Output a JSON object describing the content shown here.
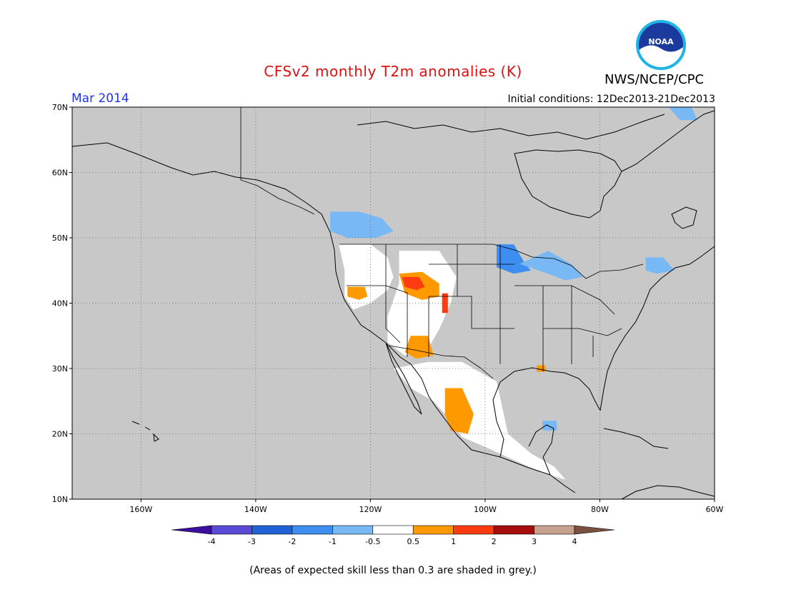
{
  "title": "CFSv2 monthly T2m anomalies (K)",
  "agency": "NWS/NCEP/CPC",
  "logo_text": "NOAA",
  "valid_month": "Mar 2014",
  "initial_conditions": "Initial conditions: 12Dec2013-21Dec2013",
  "footnote": "(Areas of expected skill less than 0.3 are shaded in grey.)",
  "map": {
    "lon_range": [
      -172,
      -60
    ],
    "lat_range": [
      10,
      70
    ],
    "lon_ticks": [
      {
        "value": -160,
        "label": "160W"
      },
      {
        "value": -140,
        "label": "140W"
      },
      {
        "value": -120,
        "label": "120W"
      },
      {
        "value": -100,
        "label": "100W"
      },
      {
        "value": -80,
        "label": "80W"
      },
      {
        "value": -60,
        "label": "60W"
      }
    ],
    "lat_ticks": [
      {
        "value": 10,
        "label": "10N"
      },
      {
        "value": 20,
        "label": "20N"
      },
      {
        "value": 30,
        "label": "30N"
      },
      {
        "value": 40,
        "label": "40N"
      },
      {
        "value": 50,
        "label": "50N"
      },
      {
        "value": 60,
        "label": "60N"
      },
      {
        "value": 70,
        "label": "70N"
      }
    ],
    "background_color": "#c8c8c8",
    "regions": [
      {
        "name": "pacific-nw-white",
        "category": "neutral",
        "points": [
          [
            -125.5,
            49
          ],
          [
            -120,
            49
          ],
          [
            -117,
            47
          ],
          [
            -116,
            44
          ],
          [
            -117,
            42
          ],
          [
            -120,
            40
          ],
          [
            -123,
            39
          ],
          [
            -124.5,
            41
          ],
          [
            -124.5,
            45
          ]
        ]
      },
      {
        "name": "canada-bc-cool",
        "category": "-0.5",
        "points": [
          [
            -127,
            54
          ],
          [
            -122,
            54
          ],
          [
            -118,
            53
          ],
          [
            -116,
            51
          ],
          [
            -119,
            50
          ],
          [
            -124,
            50
          ],
          [
            -127,
            51
          ]
        ]
      },
      {
        "name": "rockies-white",
        "category": "neutral",
        "points": [
          [
            -115,
            48
          ],
          [
            -108,
            48
          ],
          [
            -105,
            44
          ],
          [
            -106,
            40
          ],
          [
            -108,
            36
          ],
          [
            -110,
            33
          ],
          [
            -114,
            32
          ],
          [
            -117,
            34
          ],
          [
            -117,
            38
          ],
          [
            -115,
            43
          ]
        ]
      },
      {
        "name": "idaho-wyoming-warm",
        "category": "0.5",
        "points": [
          [
            -115,
            44.5
          ],
          [
            -111,
            44.8
          ],
          [
            -108,
            43
          ],
          [
            -108,
            41
          ],
          [
            -111,
            40.5
          ],
          [
            -114,
            41.5
          ]
        ]
      },
      {
        "name": "idaho-hot",
        "category": "1",
        "points": [
          [
            -114.5,
            44
          ],
          [
            -111.5,
            44
          ],
          [
            -110.5,
            42.5
          ],
          [
            -112,
            42
          ],
          [
            -114,
            42.5
          ]
        ]
      },
      {
        "name": "colorado-hot",
        "category": "1",
        "points": [
          [
            -107.5,
            41.5
          ],
          [
            -106.5,
            41.5
          ],
          [
            -106.5,
            38.5
          ],
          [
            -107.5,
            38.5
          ]
        ]
      },
      {
        "name": "california-warm",
        "category": "0.5",
        "points": [
          [
            -124,
            42.5
          ],
          [
            -121,
            42.5
          ],
          [
            -120.5,
            41
          ],
          [
            -122,
            40.5
          ],
          [
            -124,
            41
          ]
        ]
      },
      {
        "name": "arizona-warm",
        "category": "0.5",
        "points": [
          [
            -113,
            35
          ],
          [
            -110,
            35
          ],
          [
            -109,
            32
          ],
          [
            -112,
            31.5
          ],
          [
            -114,
            32.5
          ]
        ]
      },
      {
        "name": "mexico-white",
        "category": "neutral",
        "points": [
          [
            -116,
            30
          ],
          [
            -110,
            31
          ],
          [
            -104,
            31
          ],
          [
            -98,
            28
          ],
          [
            -97,
            24
          ],
          [
            -96,
            20
          ],
          [
            -92,
            17
          ],
          [
            -88,
            15
          ],
          [
            -86,
            13
          ],
          [
            -90,
            14
          ],
          [
            -95,
            16
          ],
          [
            -100,
            18
          ],
          [
            -104,
            19.5
          ],
          [
            -106,
            22
          ],
          [
            -109,
            25
          ],
          [
            -113,
            27
          ]
        ]
      },
      {
        "name": "mexico-warm",
        "category": "0.5",
        "points": [
          [
            -107,
            27
          ],
          [
            -104,
            27
          ],
          [
            -102,
            23
          ],
          [
            -103,
            20
          ],
          [
            -106,
            20.5
          ],
          [
            -107,
            23
          ]
        ]
      },
      {
        "name": "gulf-coast-warm",
        "category": "0.5",
        "points": [
          [
            -91,
            30.5
          ],
          [
            -89.5,
            30.5
          ],
          [
            -89.5,
            29.5
          ],
          [
            -91,
            29.5
          ]
        ]
      },
      {
        "name": "upper-midwest-cool",
        "category": "-1",
        "points": [
          [
            -98,
            49
          ],
          [
            -95,
            49
          ],
          [
            -93,
            46
          ],
          [
            -92,
            45
          ],
          [
            -95,
            44.5
          ],
          [
            -98,
            45.5
          ]
        ]
      },
      {
        "name": "great-lakes-cool",
        "category": "-0.5",
        "points": [
          [
            -94,
            46
          ],
          [
            -89,
            48
          ],
          [
            -85,
            46
          ],
          [
            -83,
            44
          ],
          [
            -86,
            43.5
          ],
          [
            -89,
            44.5
          ]
        ]
      },
      {
        "name": "new-england-cool",
        "category": "-0.5",
        "points": [
          [
            -72,
            47
          ],
          [
            -69,
            47
          ],
          [
            -67,
            45
          ],
          [
            -70,
            44.5
          ],
          [
            -72,
            45
          ]
        ]
      },
      {
        "name": "yucatan-cool",
        "category": "-0.5",
        "points": [
          [
            -90,
            22
          ],
          [
            -87.5,
            22
          ],
          [
            -87.5,
            20.5
          ],
          [
            -90,
            20.5
          ]
        ]
      },
      {
        "name": "greenland-cool",
        "category": "-0.5",
        "points": [
          [
            -68,
            70
          ],
          [
            -64,
            70
          ],
          [
            -63,
            68
          ],
          [
            -66,
            68
          ]
        ]
      }
    ]
  },
  "colorbar": {
    "labels": [
      "-4",
      "-3",
      "-2",
      "-1",
      "-0.5",
      "0.5",
      "1",
      "2",
      "3",
      "4"
    ],
    "colors": [
      "#3a0e9e",
      "#5a4ad6",
      "#1f63d6",
      "#3d8ef0",
      "#78b8f4",
      "#ffffff",
      "#ff9900",
      "#ff3b12",
      "#a50d0d",
      "#c8a090",
      "#7a5040"
    ],
    "category_colors": {
      "-1": "#3d8ef0",
      "-0.5": "#78b8f4",
      "neutral": "#ffffff",
      "0.5": "#ff9900",
      "1": "#ff3b12"
    }
  }
}
